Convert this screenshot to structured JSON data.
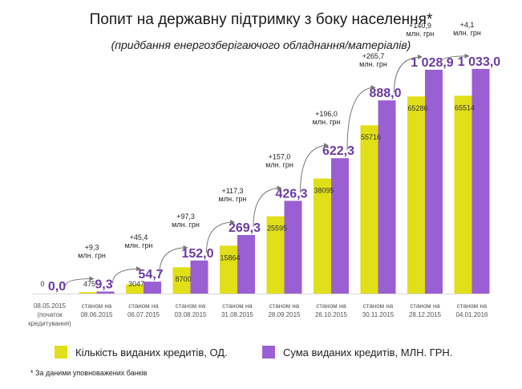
{
  "title": "Попит на державну підтримку з боку населення*",
  "subtitle": "(придбання енергозберігаючого обладнання/матеріалів)",
  "footnote": "* За даними уповноважених банків",
  "colors": {
    "count": "#e1df17",
    "sum": "#9a5fd3",
    "sum_label": "#6a3aa0",
    "arrow": "#777777"
  },
  "chart_data": {
    "type": "bar",
    "categories": [
      "08.05.2015\n(початок\nкредитування)",
      "станом на\n08.06.2015",
      "станом на\n06.07.2015",
      "станом на\n03.08.2015",
      "станом на\n31.08.2015",
      "станом на\n28.09.2015",
      "станом на\n26.10.2015",
      "станом на\n30.11.2015",
      "станом на\n28.12.2015",
      "станом на\n04.01.2016"
    ],
    "series": [
      {
        "name": "Кількість виданих кредитів, ОД.",
        "values": [
          0,
          475,
          3047,
          8700,
          15864,
          25595,
          38095,
          55716,
          65286,
          65514
        ],
        "labels": [
          "0",
          "475",
          "3047",
          "8700",
          "15864",
          "25595",
          "38095",
          "55716",
          "65286",
          "65514"
        ]
      },
      {
        "name": "Сума виданих кредитів, МЛН. ГРН.",
        "values": [
          0.0,
          9.3,
          54.7,
          152.0,
          269.3,
          426.3,
          622.3,
          888.0,
          1028.9,
          1033.0
        ],
        "labels": [
          "0,0",
          "9,3",
          "54,7",
          "152,0",
          "269,3",
          "426,3",
          "622,3",
          "888,0",
          "1 028,9",
          "1 033,0"
        ]
      }
    ],
    "increments": [
      "",
      "+9,3\nмлн. грн",
      "+45,4\nмлн. грн",
      "+97,3\nмлн. грн",
      "+117,3\nмлн. грн",
      "+157,0\nмлн. грн",
      "+196,0\nмлн. грн",
      "+265,7\nмлн. грн",
      "+140,9\nмлн. грн",
      "+4,1\nмлн. грн"
    ],
    "ylim_count": [
      0,
      85000
    ],
    "ylim_sum": [
      0,
      1180
    ],
    "legend_position": "bottom",
    "grid": false
  }
}
